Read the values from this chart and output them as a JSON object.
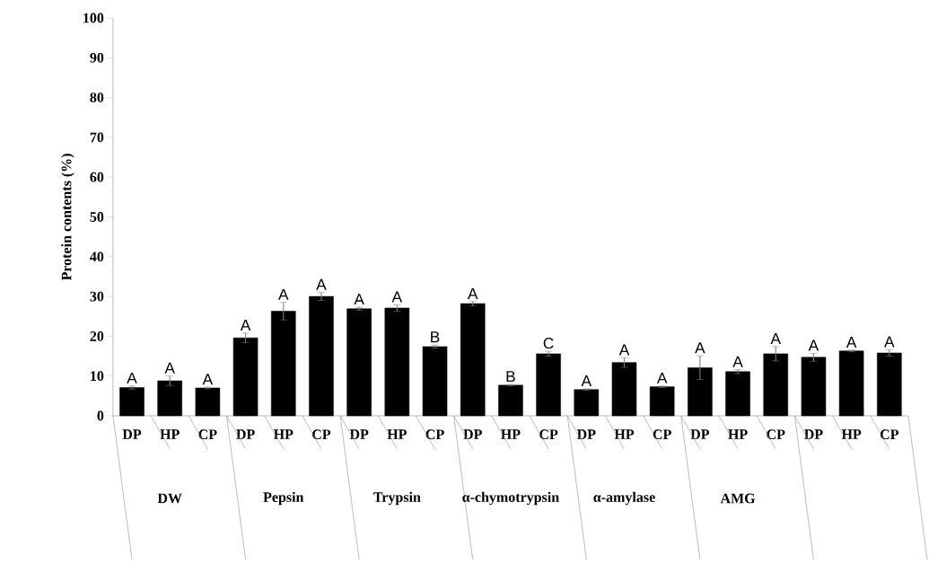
{
  "chart_data": {
    "type": "bar",
    "ylabel": "Protein contents (%)",
    "categories": [
      "DP",
      "HP",
      "CP",
      "DP",
      "HP",
      "CP",
      "DP",
      "HP",
      "CP",
      "DP",
      "HP",
      "CP",
      "DP",
      "HP",
      "CP",
      "DP",
      "HP",
      "CP",
      "DP",
      "HP",
      "CP"
    ],
    "values": [
      7.1,
      8.8,
      7.0,
      19.6,
      26.3,
      30.0,
      26.9,
      27.1,
      17.4,
      28.2,
      7.7,
      15.6,
      6.6,
      13.4,
      7.3,
      12.1,
      11.1,
      15.6,
      14.7,
      16.3,
      15.8
    ],
    "errors": [
      0.4,
      1.2,
      0.2,
      1.2,
      2.2,
      1.0,
      0.4,
      0.8,
      0.4,
      0.5,
      0.2,
      0.6,
      0.2,
      1.2,
      0.2,
      3.0,
      0.5,
      1.8,
      1.0,
      0.2,
      0.8
    ],
    "value_labels": [
      "A",
      "A",
      "A",
      "A",
      "A",
      "A",
      "A",
      "A",
      "B",
      "A",
      "B",
      "C",
      "A",
      "A",
      "A",
      "A",
      "A",
      "A",
      "A",
      "A",
      "A"
    ],
    "color": "#000000",
    "ylim": [
      0,
      100
    ],
    "yticks": [
      0,
      10,
      20,
      30,
      40,
      50,
      60,
      70,
      80,
      90,
      100
    ],
    "annotations": [
      "DW",
      "Pepsin",
      "Trypsin",
      "α-chymotrypsin",
      "α-amylase",
      "AMG"
    ]
  }
}
